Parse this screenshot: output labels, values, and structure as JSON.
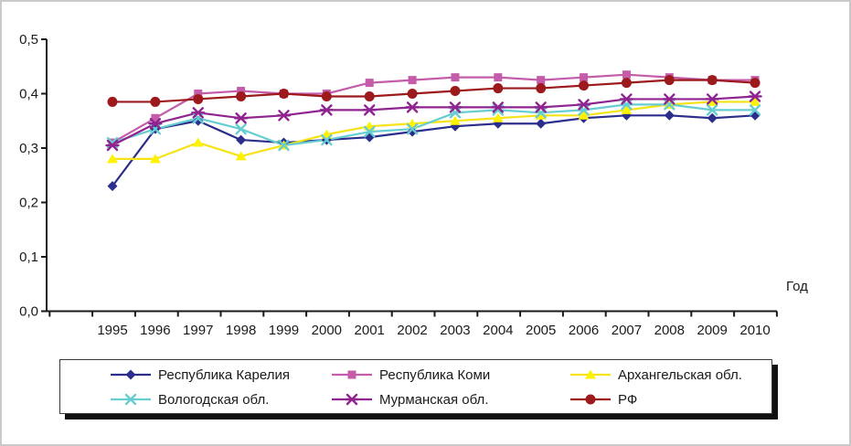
{
  "chart_data": {
    "type": "line",
    "title": "",
    "xlabel": "Год",
    "ylabel": "",
    "x": [
      1995,
      1996,
      1997,
      1998,
      1999,
      2000,
      2001,
      2002,
      2003,
      2004,
      2005,
      2006,
      2007,
      2008,
      2009,
      2010
    ],
    "ylim": [
      0.0,
      0.5
    ],
    "ytick_labels": [
      "0,0",
      "0,1",
      "0,2",
      "0,3",
      "0,4",
      "0,5"
    ],
    "grid": false,
    "legend_position": "bottom",
    "series": [
      {
        "name": "Республика Карелия",
        "marker": "diamond",
        "color": "#2c2e8c",
        "values": [
          0.23,
          0.335,
          0.35,
          0.315,
          0.31,
          0.315,
          0.32,
          0.33,
          0.34,
          0.345,
          0.345,
          0.355,
          0.36,
          0.36,
          0.355,
          0.36
        ]
      },
      {
        "name": "Республика Коми",
        "marker": "square",
        "color": "#c45ca9",
        "values": [
          0.31,
          0.355,
          0.4,
          0.405,
          0.4,
          0.4,
          0.42,
          0.425,
          0.43,
          0.43,
          0.425,
          0.43,
          0.435,
          0.43,
          0.425,
          0.425
        ]
      },
      {
        "name": "Архангельская обл.",
        "marker": "triangle",
        "color": "#f5e316",
        "marker_fill": "#fff200",
        "values": [
          0.28,
          0.28,
          0.31,
          0.285,
          0.305,
          0.325,
          0.34,
          0.345,
          0.35,
          0.355,
          0.36,
          0.36,
          0.37,
          0.38,
          0.385,
          0.385
        ]
      },
      {
        "name": "Вологодская обл.",
        "marker": "x",
        "color": "#66cdd1",
        "values": [
          0.31,
          0.335,
          0.355,
          0.335,
          0.305,
          0.315,
          0.33,
          0.335,
          0.365,
          0.37,
          0.365,
          0.37,
          0.38,
          0.38,
          0.37,
          0.37
        ]
      },
      {
        "name": "Мурманская обл.",
        "marker": "star",
        "color": "#8f2490",
        "values": [
          0.305,
          0.345,
          0.365,
          0.355,
          0.36,
          0.37,
          0.37,
          0.375,
          0.375,
          0.375,
          0.375,
          0.38,
          0.39,
          0.39,
          0.39,
          0.395
        ]
      },
      {
        "name": "РФ",
        "marker": "circle",
        "color": "#9c1a1c",
        "values": [
          0.385,
          0.385,
          0.39,
          0.395,
          0.4,
          0.395,
          0.395,
          0.4,
          0.405,
          0.41,
          0.41,
          0.415,
          0.42,
          0.425,
          0.425,
          0.42
        ]
      }
    ]
  }
}
